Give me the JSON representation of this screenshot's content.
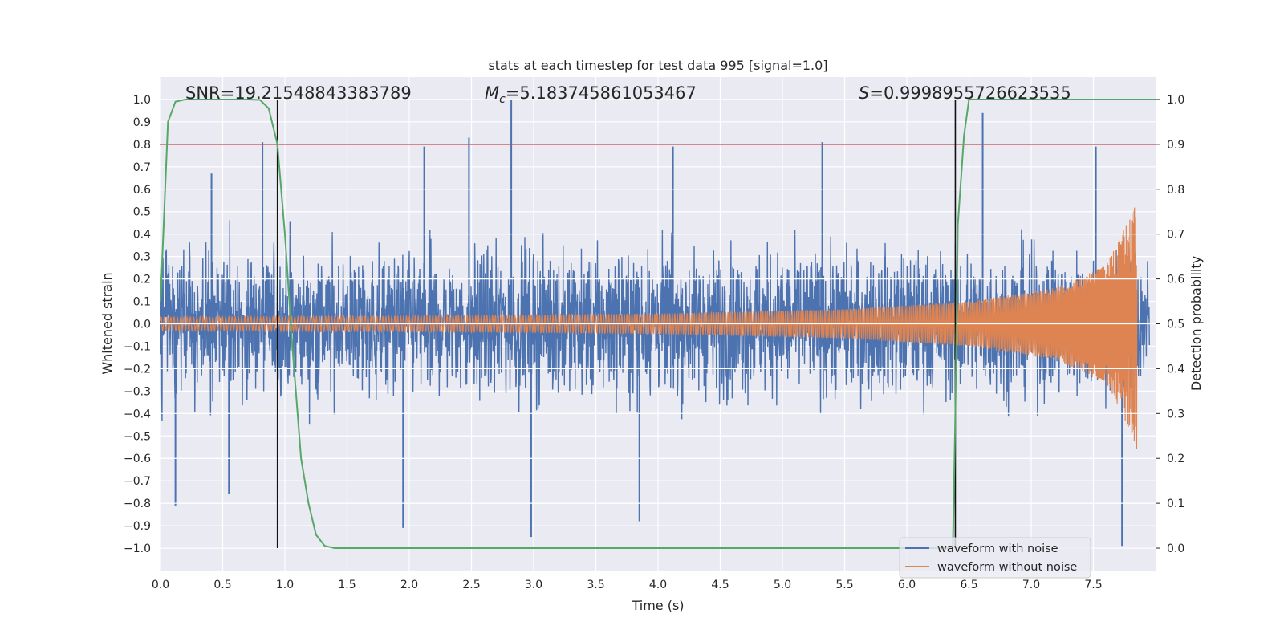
{
  "chart_data": {
    "type": "line",
    "title": "stats at each timestep for test data 995 [signal=1.0]",
    "xlabel": "Time (s)",
    "ylabel": "Whitened strain",
    "y2label": "Detection probability",
    "xlim": [
      0.0,
      8.0
    ],
    "ylim": [
      -1.1,
      1.1
    ],
    "y2lim": [
      -0.05,
      1.05
    ],
    "x_ticks": [
      "0.0",
      "0.5",
      "1.0",
      "1.5",
      "2.0",
      "2.5",
      "3.0",
      "3.5",
      "4.0",
      "4.5",
      "5.0",
      "5.5",
      "6.0",
      "6.5",
      "7.0",
      "7.5"
    ],
    "x_tick_values": [
      0.0,
      0.5,
      1.0,
      1.5,
      2.0,
      2.5,
      3.0,
      3.5,
      4.0,
      4.5,
      5.0,
      5.5,
      6.0,
      6.5,
      7.0,
      7.5
    ],
    "y_ticks": [
      "1.0",
      "0.9",
      "0.8",
      "0.7",
      "0.6",
      "0.5",
      "0.4",
      "0.3",
      "0.2",
      "0.1",
      "0.0",
      "−0.1",
      "−0.2",
      "−0.3",
      "−0.4",
      "−0.5",
      "−0.6",
      "−0.7",
      "−0.8",
      "−0.9",
      "−1.0"
    ],
    "y_tick_values": [
      1.0,
      0.9,
      0.8,
      0.7,
      0.6,
      0.5,
      0.4,
      0.3,
      0.2,
      0.1,
      0.0,
      -0.1,
      -0.2,
      -0.3,
      -0.4,
      -0.5,
      -0.6,
      -0.7,
      -0.8,
      -0.9,
      -1.0
    ],
    "y2_ticks": [
      "1.0",
      "0.9",
      "0.8",
      "0.7",
      "0.6",
      "0.5",
      "0.4",
      "0.3",
      "0.2",
      "0.1",
      "0.0"
    ],
    "y2_tick_values": [
      1.0,
      0.9,
      0.8,
      0.7,
      0.6,
      0.5,
      0.4,
      0.3,
      0.2,
      0.1,
      0.0
    ],
    "grid": true,
    "legend_position": "bottom-right",
    "annotations": {
      "snr": "SNR=19.21548843383789",
      "mc_symbol": "M",
      "mc_sub": "c",
      "mc_value": "=5.183745861053467",
      "s_symbol": "S",
      "s_value": "=0.9998955726623535"
    },
    "threshold": {
      "value": 0.9,
      "axis": "y2",
      "color": "#c44e52"
    },
    "vertical_markers": [
      {
        "x": 0.94,
        "y_from": -1.0,
        "y_to": 1.0
      },
      {
        "x": 6.39,
        "y_from": -1.0,
        "y_to": 1.0
      }
    ],
    "series": [
      {
        "name": "waveform with noise",
        "color": "#4c72b0",
        "description_type": "noise",
        "x_start": 0.0,
        "x_end": 7.95,
        "typical_amplitude": 0.33,
        "peak_values": [
          {
            "x": 0.12,
            "y": -0.81
          },
          {
            "x": 0.41,
            "y": 0.67
          },
          {
            "x": 0.55,
            "y": -0.76
          },
          {
            "x": 0.82,
            "y": 0.81
          },
          {
            "x": 1.95,
            "y": -0.91
          },
          {
            "x": 2.12,
            "y": 0.79
          },
          {
            "x": 2.48,
            "y": 0.83
          },
          {
            "x": 2.82,
            "y": 1.0
          },
          {
            "x": 2.98,
            "y": -0.95
          },
          {
            "x": 3.85,
            "y": -0.88
          },
          {
            "x": 4.12,
            "y": 0.79
          },
          {
            "x": 5.32,
            "y": 0.81
          },
          {
            "x": 6.61,
            "y": 0.94
          },
          {
            "x": 7.52,
            "y": 0.79
          },
          {
            "x": 7.73,
            "y": -0.99
          }
        ]
      },
      {
        "name": "waveform without noise",
        "color": "#dd8452",
        "description_type": "chirp",
        "x_start": 0.0,
        "x_end": 7.85,
        "amplitude_points": [
          [
            0.0,
            0.03
          ],
          [
            2.0,
            0.035
          ],
          [
            4.0,
            0.045
          ],
          [
            5.5,
            0.065
          ],
          [
            6.5,
            0.1
          ],
          [
            7.2,
            0.16
          ],
          [
            7.6,
            0.26
          ],
          [
            7.8,
            0.48
          ],
          [
            7.85,
            0.56
          ]
        ]
      },
      {
        "name": "detection probability",
        "color": "#55a868",
        "axis": "y2",
        "x": [
          0.0,
          0.06,
          0.12,
          0.2,
          0.3,
          0.5,
          0.7,
          0.8,
          0.87,
          0.94,
          1.0,
          1.06,
          1.13,
          1.19,
          1.25,
          1.32,
          1.4,
          2.0,
          3.0,
          4.0,
          5.0,
          6.0,
          6.37,
          6.39,
          6.41,
          6.46,
          6.5,
          6.6,
          7.0,
          7.5,
          8.0
        ],
        "y": [
          0.55,
          0.95,
          0.995,
          1.0,
          1.0,
          1.0,
          1.0,
          0.999,
          0.98,
          0.9,
          0.7,
          0.45,
          0.2,
          0.1,
          0.03,
          0.005,
          0.0,
          0.0,
          0.0,
          0.0,
          0.0,
          0.0,
          0.0,
          0.3,
          0.72,
          0.92,
          1.0,
          1.0,
          1.0,
          1.0,
          1.0
        ]
      }
    ]
  }
}
